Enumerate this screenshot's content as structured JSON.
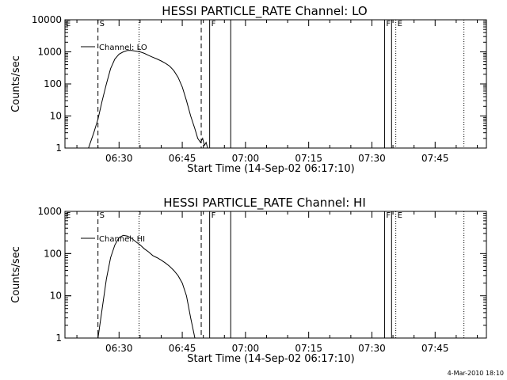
{
  "footer_timestamp": "4-Mar-2010 18:10",
  "chart_data": [
    {
      "type": "line",
      "title": "HESSI PARTICLE_RATE Channel: LO",
      "xlabel": "Start Time (14-Sep-02 06:17:10)",
      "ylabel": "Counts/sec",
      "yscale": "log",
      "ylim": [
        1,
        10000
      ],
      "xlim": [
        "06:17:10",
        "07:57:10"
      ],
      "ytick_labels": [
        "1",
        "10",
        "100",
        "1000",
        "10000"
      ],
      "yticks": [
        1,
        10,
        100,
        1000,
        10000
      ],
      "xtick_labels": [
        "06:30",
        "06:45",
        "07:00",
        "07:15",
        "07:30",
        "07:45"
      ],
      "xticks": [
        "06:30",
        "06:45",
        "07:00",
        "07:15",
        "07:30",
        "07:45"
      ],
      "legend": {
        "label": "Channel: LO",
        "position": "top-left"
      },
      "series": [
        {
          "name": "Channel: LO",
          "x": [
            "06:22:45",
            "06:24:00",
            "06:25:00",
            "06:26:00",
            "06:27:00",
            "06:28:00",
            "06:29:00",
            "06:30:00",
            "06:31:00",
            "06:32:00",
            "06:33:00",
            "06:34:00",
            "06:35:00",
            "06:36:00",
            "06:37:00",
            "06:38:00",
            "06:39:00",
            "06:40:00",
            "06:41:00",
            "06:42:00",
            "06:43:00",
            "06:44:00",
            "06:45:00",
            "06:46:00",
            "06:47:00",
            "06:48:00",
            "06:48:40",
            "06:49:20",
            "06:49:50",
            "06:50:15",
            "06:50:40",
            "06:51:00"
          ],
          "values": [
            1,
            3,
            8,
            30,
            100,
            300,
            600,
            850,
            1000,
            1100,
            1100,
            1050,
            1000,
            900,
            780,
            680,
            600,
            520,
            440,
            360,
            260,
            160,
            80,
            30,
            10,
            4,
            2,
            1.5,
            2,
            1.2,
            1.5,
            1
          ]
        }
      ],
      "markers": [
        {
          "time": "06:25:00",
          "label": "S",
          "style": "dashed"
        },
        {
          "time": "06:34:45",
          "label": "",
          "style": "dotted"
        },
        {
          "time": "06:49:30",
          "label": "",
          "style": "dashed"
        },
        {
          "time": "06:51:30",
          "label": "F",
          "style": "solid"
        },
        {
          "time": "06:56:30",
          "label": "",
          "style": "solid"
        },
        {
          "time": "07:33:00",
          "label": "F",
          "style": "solid"
        },
        {
          "time": "07:34:40",
          "label": "",
          "style": "solid"
        },
        {
          "time": "07:35:40",
          "label": "E",
          "style": "dotted"
        },
        {
          "time": "07:51:50",
          "label": "",
          "style": "dotted"
        }
      ],
      "left_edge_label": "E"
    },
    {
      "type": "line",
      "title": "HESSI PARTICLE_RATE Channel: HI",
      "xlabel": "Start Time (14-Sep-02 06:17:10)",
      "ylabel": "Counts/sec",
      "yscale": "log",
      "ylim": [
        1,
        1000
      ],
      "xlim": [
        "06:17:10",
        "07:57:10"
      ],
      "ytick_labels": [
        "1",
        "10",
        "100",
        "1000"
      ],
      "yticks": [
        1,
        10,
        100,
        1000
      ],
      "xtick_labels": [
        "06:30",
        "06:45",
        "07:00",
        "07:15",
        "07:30",
        "07:45"
      ],
      "xticks": [
        "06:30",
        "06:45",
        "07:00",
        "07:15",
        "07:30",
        "07:45"
      ],
      "legend": {
        "label": "Channel: HI",
        "position": "top-left"
      },
      "series": [
        {
          "name": "Channel: HI",
          "x": [
            "06:25:00",
            "06:26:00",
            "06:27:00",
            "06:28:00",
            "06:29:00",
            "06:30:00",
            "06:31:00",
            "06:32:00",
            "06:33:00",
            "06:34:00",
            "06:35:00",
            "06:36:00",
            "06:37:00",
            "06:38:00",
            "06:39:00",
            "06:40:00",
            "06:41:00",
            "06:42:00",
            "06:43:00",
            "06:44:00",
            "06:45:00",
            "06:46:00",
            "06:47:00",
            "06:48:00"
          ],
          "values": [
            1,
            5,
            25,
            80,
            160,
            240,
            270,
            260,
            230,
            190,
            160,
            130,
            110,
            90,
            80,
            70,
            60,
            50,
            40,
            30,
            20,
            10,
            3,
            1
          ]
        }
      ],
      "markers": [
        {
          "time": "06:25:00",
          "label": "S",
          "style": "dashed"
        },
        {
          "time": "06:34:45",
          "label": "",
          "style": "dotted"
        },
        {
          "time": "06:49:30",
          "label": "",
          "style": "dashed"
        },
        {
          "time": "06:51:30",
          "label": "F",
          "style": "solid"
        },
        {
          "time": "06:56:30",
          "label": "",
          "style": "solid"
        },
        {
          "time": "07:33:00",
          "label": "F",
          "style": "solid"
        },
        {
          "time": "07:34:40",
          "label": "",
          "style": "solid"
        },
        {
          "time": "07:35:40",
          "label": "E",
          "style": "dotted"
        },
        {
          "time": "07:51:50",
          "label": "",
          "style": "dotted"
        }
      ],
      "left_edge_label": "E"
    }
  ]
}
